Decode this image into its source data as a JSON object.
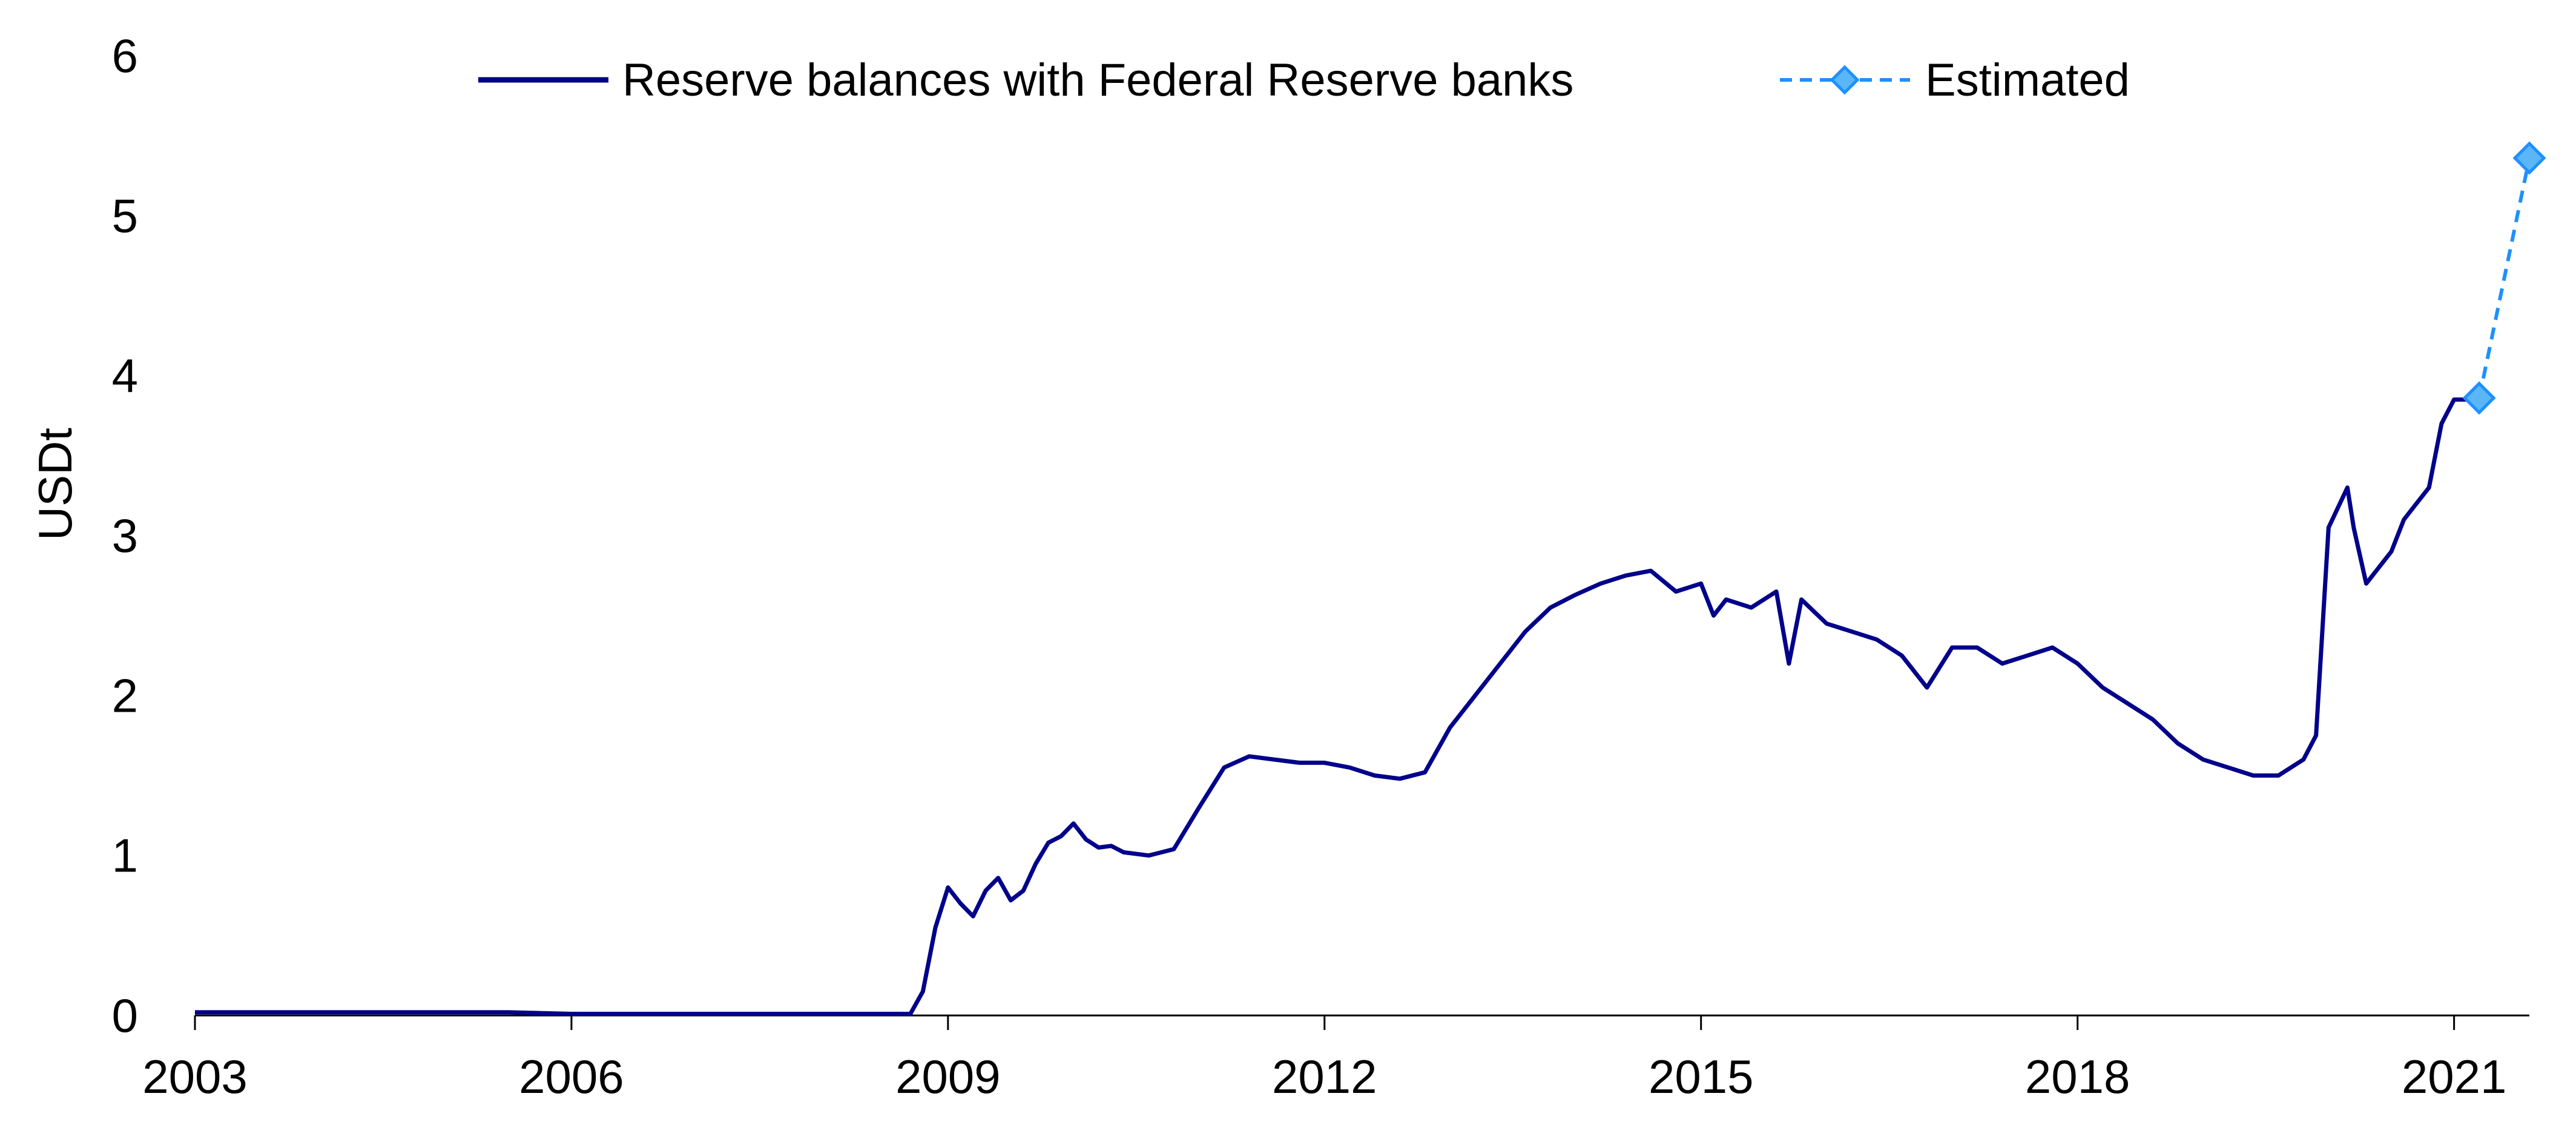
{
  "chart_data": {
    "type": "line",
    "title": "",
    "xlabel": "",
    "ylabel": "USDt",
    "xlim": [
      2003,
      2021.6
    ],
    "ylim": [
      0,
      6
    ],
    "x_ticks": [
      "2003",
      "2006",
      "2009",
      "2012",
      "2015",
      "2018",
      "2021"
    ],
    "y_ticks": [
      "0",
      "1",
      "2",
      "3",
      "4",
      "5",
      "6"
    ],
    "grid": false,
    "legend_position": "top",
    "series": [
      {
        "name": "Reserve balances with Federal Reserve banks",
        "color": "#00008b",
        "style": "solid",
        "x": [
          2003.0,
          2003.5,
          2004.0,
          2004.5,
          2005.0,
          2005.5,
          2006.0,
          2006.5,
          2007.0,
          2007.5,
          2008.0,
          2008.5,
          2008.7,
          2008.8,
          2008.9,
          2009.0,
          2009.1,
          2009.2,
          2009.3,
          2009.4,
          2009.5,
          2009.6,
          2009.7,
          2009.8,
          2009.9,
          2010.0,
          2010.1,
          2010.2,
          2010.3,
          2010.4,
          2010.6,
          2010.8,
          2011.0,
          2011.2,
          2011.4,
          2011.6,
          2011.8,
          2012.0,
          2012.2,
          2012.4,
          2012.6,
          2012.8,
          2013.0,
          2013.2,
          2013.4,
          2013.6,
          2013.8,
          2014.0,
          2014.2,
          2014.4,
          2014.6,
          2014.8,
          2015.0,
          2015.1,
          2015.2,
          2015.4,
          2015.6,
          2015.7,
          2015.8,
          2016.0,
          2016.2,
          2016.4,
          2016.6,
          2016.8,
          2017.0,
          2017.2,
          2017.4,
          2017.6,
          2017.8,
          2018.0,
          2018.2,
          2018.4,
          2018.6,
          2018.8,
          2019.0,
          2019.2,
          2019.4,
          2019.6,
          2019.8,
          2019.9,
          2020.0,
          2020.15,
          2020.2,
          2020.3,
          2020.4,
          2020.5,
          2020.6,
          2020.7,
          2020.8,
          2020.9,
          2021.0,
          2021.1,
          2021.2
        ],
        "y": [
          0.02,
          0.02,
          0.02,
          0.02,
          0.02,
          0.02,
          0.01,
          0.01,
          0.01,
          0.01,
          0.01,
          0.01,
          0.01,
          0.15,
          0.55,
          0.8,
          0.7,
          0.62,
          0.78,
          0.86,
          0.72,
          0.78,
          0.95,
          1.08,
          1.12,
          1.2,
          1.1,
          1.05,
          1.06,
          1.02,
          1.0,
          1.04,
          1.3,
          1.55,
          1.62,
          1.6,
          1.58,
          1.58,
          1.55,
          1.5,
          1.48,
          1.52,
          1.8,
          2.0,
          2.2,
          2.4,
          2.55,
          2.63,
          2.7,
          2.75,
          2.78,
          2.65,
          2.7,
          2.5,
          2.6,
          2.55,
          2.65,
          2.2,
          2.6,
          2.45,
          2.4,
          2.35,
          2.25,
          2.05,
          2.3,
          2.3,
          2.2,
          2.25,
          2.3,
          2.2,
          2.05,
          1.95,
          1.85,
          1.7,
          1.6,
          1.55,
          1.5,
          1.5,
          1.6,
          1.75,
          3.05,
          3.3,
          3.05,
          2.7,
          2.8,
          2.9,
          3.1,
          3.2,
          3.3,
          3.7,
          3.85,
          3.85,
          3.85
        ]
      },
      {
        "name": "Estimated",
        "color": "#1e90ff",
        "style": "dashed",
        "marker": "diamond",
        "x": [
          2021.2,
          2021.6
        ],
        "y": [
          3.86,
          5.36
        ]
      }
    ]
  }
}
